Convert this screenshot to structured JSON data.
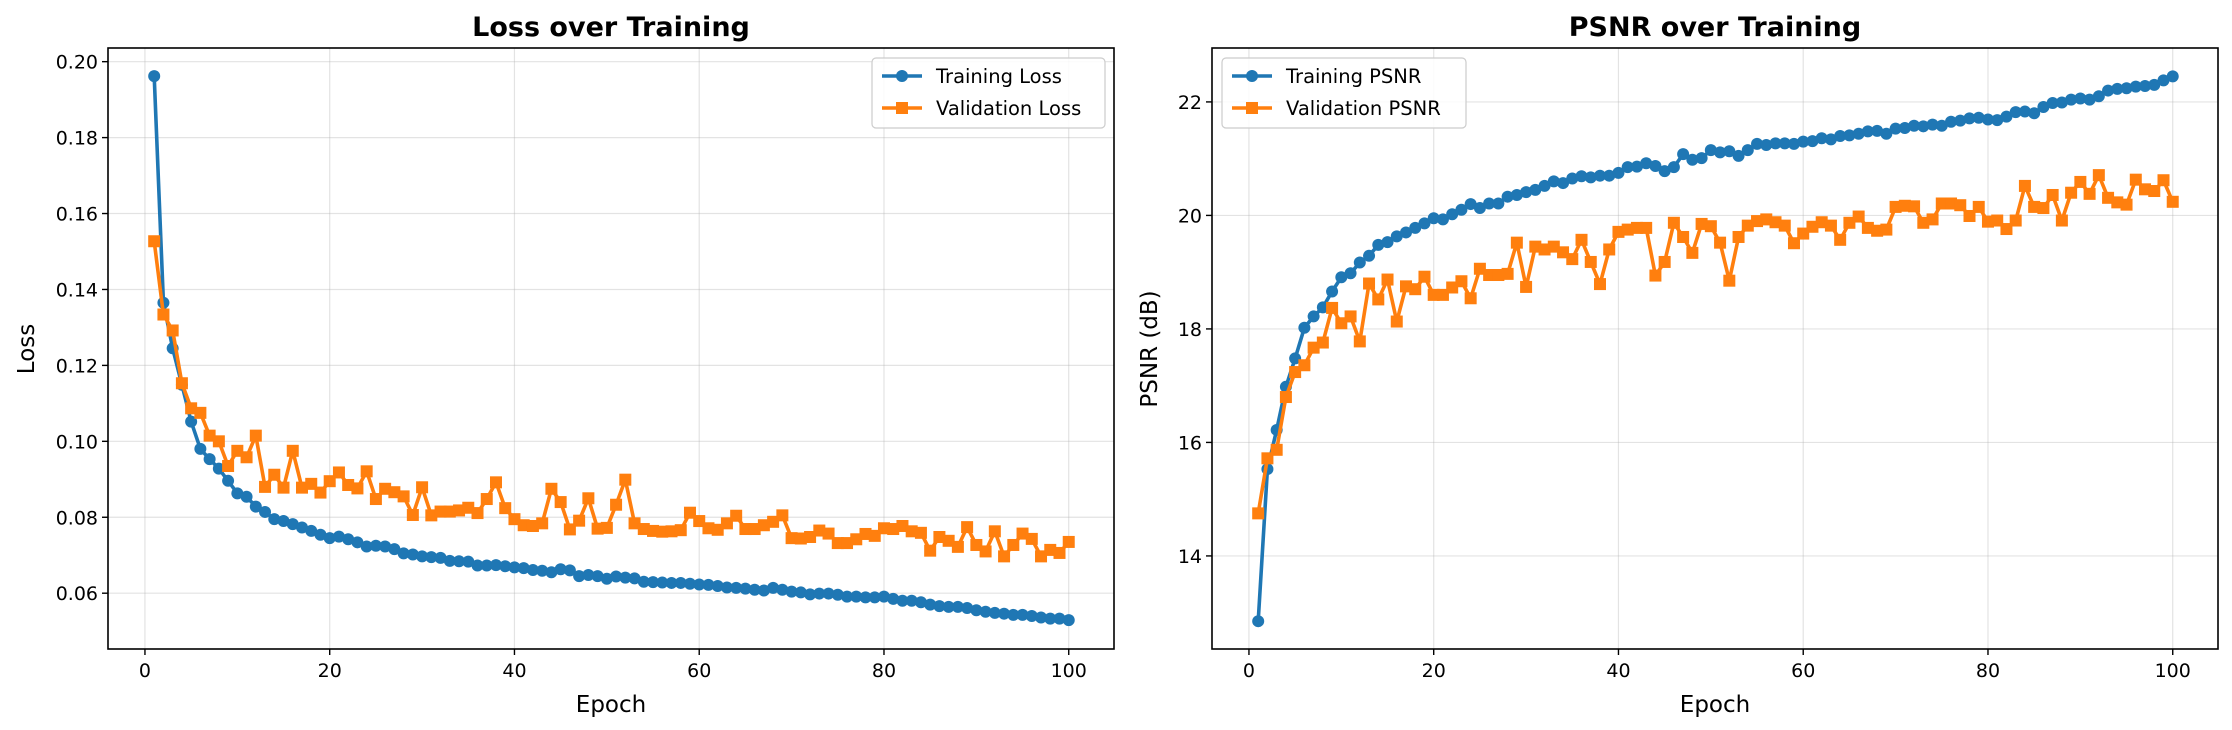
{
  "chart_data": [
    {
      "type": "line",
      "title": "Loss over Training",
      "xlabel": "Epoch",
      "ylabel": "Loss",
      "xlim": [
        -4,
        104.9
      ],
      "ylim": [
        0.0453,
        0.2036
      ],
      "xticks": [
        "0",
        "20",
        "40",
        "60",
        "80",
        "100"
      ],
      "yticks": [
        "0.06",
        "0.08",
        "0.10",
        "0.12",
        "0.14",
        "0.16",
        "0.18",
        "0.20"
      ],
      "grid": true,
      "legend": "top-right",
      "series": [
        {
          "name": "Training Loss",
          "color": "#1f77b4",
          "marker": "circle",
          "x_start": 1,
          "values": [
            0.1962,
            0.1365,
            0.1245,
            0.1149,
            0.1052,
            0.098,
            0.0953,
            0.0928,
            0.0896,
            0.0863,
            0.0854,
            0.0828,
            0.0814,
            0.0795,
            0.079,
            0.0782,
            0.0773,
            0.0764,
            0.0754,
            0.0745,
            0.0749,
            0.0742,
            0.0734,
            0.0723,
            0.0725,
            0.0723,
            0.0716,
            0.0705,
            0.0702,
            0.0697,
            0.0695,
            0.0693,
            0.0685,
            0.0684,
            0.0683,
            0.0673,
            0.0673,
            0.0674,
            0.0671,
            0.0668,
            0.0666,
            0.0661,
            0.0659,
            0.0655,
            0.0663,
            0.066,
            0.0645,
            0.0648,
            0.0645,
            0.0638,
            0.0644,
            0.0641,
            0.0639,
            0.063,
            0.0629,
            0.0628,
            0.0627,
            0.0627,
            0.0625,
            0.0623,
            0.0622,
            0.0619,
            0.0615,
            0.0614,
            0.0612,
            0.0609,
            0.0607,
            0.0614,
            0.0609,
            0.0604,
            0.0602,
            0.0597,
            0.0599,
            0.0599,
            0.0596,
            0.0591,
            0.0591,
            0.0589,
            0.0589,
            0.0591,
            0.0585,
            0.058,
            0.058,
            0.0576,
            0.057,
            0.0566,
            0.0564,
            0.0564,
            0.0561,
            0.0555,
            0.0551,
            0.0548,
            0.0546,
            0.0543,
            0.0543,
            0.054,
            0.0536,
            0.0533,
            0.0533,
            0.0529
          ]
        },
        {
          "name": "Validation Loss",
          "color": "#ff7f0e",
          "marker": "square",
          "x_start": 1,
          "values": [
            0.1527,
            0.1334,
            0.1292,
            0.1153,
            0.1087,
            0.1075,
            0.1015,
            0.1,
            0.0935,
            0.0975,
            0.0958,
            0.1015,
            0.088,
            0.0912,
            0.0878,
            0.0975,
            0.0878,
            0.0888,
            0.0865,
            0.0895,
            0.0918,
            0.0885,
            0.0876,
            0.0921,
            0.0848,
            0.0875,
            0.0866,
            0.0855,
            0.0806,
            0.0879,
            0.0805,
            0.0815,
            0.0815,
            0.0818,
            0.0825,
            0.0811,
            0.0848,
            0.0892,
            0.0824,
            0.0795,
            0.0779,
            0.0777,
            0.0784,
            0.0875,
            0.084,
            0.0768,
            0.0791,
            0.085,
            0.077,
            0.0772,
            0.0833,
            0.0899,
            0.0784,
            0.0769,
            0.0764,
            0.0762,
            0.0763,
            0.0766,
            0.0812,
            0.079,
            0.0771,
            0.0767,
            0.0784,
            0.0804,
            0.0769,
            0.0769,
            0.0779,
            0.0788,
            0.0805,
            0.0745,
            0.0744,
            0.0748,
            0.0765,
            0.0757,
            0.0732,
            0.0732,
            0.0742,
            0.0756,
            0.0751,
            0.0771,
            0.0769,
            0.0777,
            0.0763,
            0.0759,
            0.0712,
            0.0748,
            0.0738,
            0.0722,
            0.0774,
            0.0727,
            0.071,
            0.0763,
            0.0697,
            0.0727,
            0.0757,
            0.0743,
            0.0697,
            0.0714,
            0.0706,
            0.0735
          ]
        }
      ]
    },
    {
      "type": "line",
      "title": "PSNR over Training",
      "xlabel": "Epoch",
      "ylabel": "PSNR (dB)",
      "xlim": [
        -4,
        104.9
      ],
      "ylim": [
        12.36,
        22.95
      ],
      "xticks": [
        "0",
        "20",
        "40",
        "60",
        "80",
        "100"
      ],
      "yticks": [
        "14",
        "16",
        "18",
        "20",
        "22"
      ],
      "grid": true,
      "legend": "top-left",
      "series": [
        {
          "name": "Training PSNR",
          "color": "#1f77b4",
          "marker": "circle",
          "x_start": 1,
          "values": [
            12.85,
            15.53,
            16.22,
            16.98,
            17.48,
            18.02,
            18.22,
            18.38,
            18.66,
            18.91,
            18.98,
            19.17,
            19.29,
            19.48,
            19.53,
            19.63,
            19.7,
            19.78,
            19.86,
            19.95,
            19.93,
            20.02,
            20.1,
            20.2,
            20.13,
            20.21,
            20.21,
            20.33,
            20.36,
            20.41,
            20.45,
            20.52,
            20.6,
            20.57,
            20.65,
            20.69,
            20.67,
            20.7,
            20.7,
            20.75,
            20.85,
            20.86,
            20.92,
            20.87,
            20.78,
            20.85,
            21.08,
            20.98,
            21.01,
            21.15,
            21.11,
            21.13,
            21.05,
            21.15,
            21.26,
            21.24,
            21.27,
            21.27,
            21.26,
            21.3,
            21.31,
            21.36,
            21.34,
            21.4,
            21.41,
            21.44,
            21.48,
            21.49,
            21.44,
            21.53,
            21.54,
            21.58,
            21.57,
            21.6,
            21.58,
            21.65,
            21.67,
            21.71,
            21.72,
            21.69,
            21.68,
            21.74,
            21.82,
            21.83,
            21.8,
            21.91,
            21.98,
            21.99,
            22.04,
            22.06,
            22.04,
            22.1,
            22.2,
            22.23,
            22.24,
            22.27,
            22.28,
            22.3,
            22.38,
            22.45
          ]
        },
        {
          "name": "Validation PSNR",
          "color": "#ff7f0e",
          "marker": "square",
          "x_start": 1,
          "values": [
            14.75,
            15.72,
            15.87,
            16.8,
            17.24,
            17.36,
            17.67,
            17.76,
            18.37,
            18.1,
            18.22,
            17.78,
            18.8,
            18.52,
            18.87,
            18.13,
            18.75,
            18.7,
            18.92,
            18.6,
            18.6,
            18.73,
            18.84,
            18.54,
            19.06,
            18.95,
            18.95,
            18.97,
            19.52,
            18.74,
            19.45,
            19.4,
            19.45,
            19.35,
            19.23,
            19.57,
            19.18,
            18.79,
            19.4,
            19.71,
            19.75,
            19.78,
            19.78,
            18.94,
            19.18,
            19.87,
            19.62,
            19.34,
            19.85,
            19.81,
            19.52,
            18.85,
            19.62,
            19.82,
            19.9,
            19.93,
            19.88,
            19.82,
            19.51,
            19.68,
            19.8,
            19.88,
            19.82,
            19.57,
            19.87,
            19.98,
            19.78,
            19.73,
            19.75,
            20.15,
            20.17,
            20.16,
            19.87,
            19.93,
            20.21,
            20.21,
            20.18,
            19.99,
            20.15,
            19.89,
            19.91,
            19.76,
            19.91,
            20.52,
            20.15,
            20.13,
            20.36,
            19.91,
            20.4,
            20.59,
            20.38,
            20.71,
            20.31,
            20.23,
            20.19,
            20.63,
            20.46,
            20.43,
            20.62,
            20.24
          ]
        }
      ]
    }
  ]
}
